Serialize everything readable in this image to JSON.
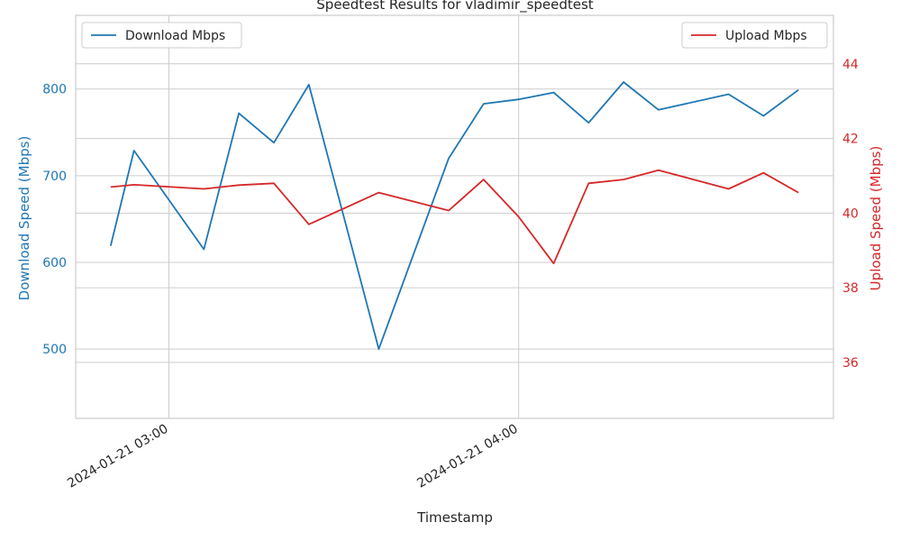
{
  "chart_data": {
    "type": "line",
    "title": "Speedtest Results for vladimir_speedtest",
    "xlabel": "Timestamp",
    "ylabel_left": "Download Speed (Mbps)",
    "ylabel_right": "Upload Speed (Mbps)",
    "x_ticks": [
      {
        "minutes": 0,
        "label": "2024-01-21 03:00"
      },
      {
        "minutes": 60,
        "label": "2024-01-21 04:00"
      }
    ],
    "x": [
      -10,
      -6,
      6,
      12,
      18,
      24,
      36,
      48,
      54,
      60,
      66,
      72,
      78,
      84,
      96,
      102,
      108
    ],
    "x_note_hidden": true,
    "xlim": [
      -16,
      114
    ],
    "ylim_left": [
      420,
      885
    ],
    "ylim_right": [
      34.5,
      45.3
    ],
    "yticks_left": [
      500,
      600,
      700,
      800
    ],
    "yticks_right": [
      36,
      38,
      40,
      42,
      44
    ],
    "grid": true,
    "series": [
      {
        "name": "Download Mbps",
        "axis": "left",
        "color": "#1f77b4",
        "x": [
          -10,
          -6,
          6,
          12,
          18,
          24,
          36,
          48,
          54,
          60,
          66,
          72,
          78,
          84,
          96,
          102,
          108
        ],
        "values": [
          619,
          729,
          615,
          772,
          738,
          805,
          500,
          720,
          783,
          788,
          796,
          761,
          808,
          776,
          794,
          769,
          799
        ]
      },
      {
        "name": "Upload Mbps",
        "axis": "right",
        "color": "#d62728",
        "x": [
          -10,
          -6,
          6,
          12,
          18,
          24,
          36,
          48,
          54,
          60,
          66,
          72,
          78,
          84,
          96,
          102,
          108
        ],
        "values": [
          40.7,
          40.76,
          40.65,
          40.75,
          40.8,
          39.7,
          40.55,
          40.07,
          40.9,
          39.9,
          38.65,
          40.8,
          40.9,
          41.15,
          40.65,
          41.08,
          40.55
        ]
      }
    ],
    "legends": [
      {
        "position": "top-left",
        "series": "Download Mbps"
      },
      {
        "position": "top-right",
        "series": "Upload Mbps"
      }
    ]
  }
}
